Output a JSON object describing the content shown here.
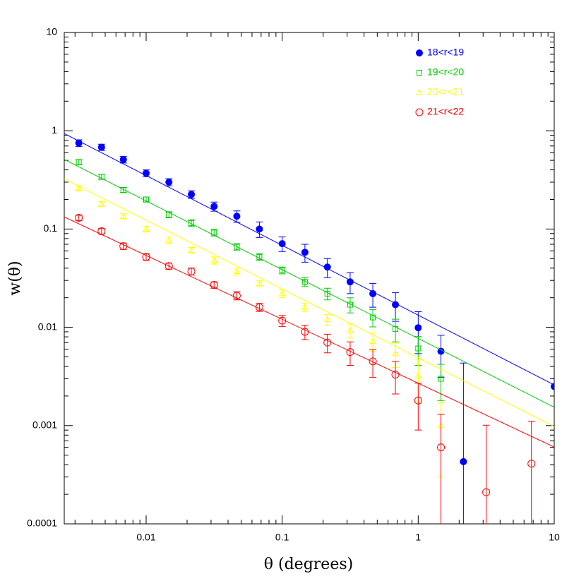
{
  "chart_data": {
    "type": "scatter",
    "x_label": "θ (degrees)",
    "y_label": "w(θ)",
    "log_x": true,
    "log_y": true,
    "legend_position": "upper right",
    "xlim": [
      0.0025,
      10
    ],
    "ylim": [
      0.0001,
      10
    ],
    "xticks": [
      0.01,
      0.1,
      1,
      10
    ],
    "yticks": [
      0.0001,
      0.001,
      0.01,
      0.1,
      1,
      10
    ],
    "x": [
      0.0032,
      0.0047,
      0.0068,
      0.01,
      0.0147,
      0.0215,
      0.0316,
      0.0464,
      0.068,
      0.1,
      0.147,
      0.215,
      0.316,
      0.464,
      0.68,
      1,
      1.47,
      2.15,
      3.16,
      4.64,
      6.8,
      10
    ],
    "series": [
      {
        "name": "18<r<19",
        "color": "#0000ff",
        "marker": "filled-circle",
        "values": [
          0.75,
          0.68,
          0.51,
          0.37,
          0.3,
          0.225,
          0.17,
          0.135,
          0.1,
          0.071,
          0.058,
          0.041,
          0.029,
          0.022,
          0.017,
          0.0099,
          0.0057,
          0.00043,
          null,
          null,
          null,
          0.0025
        ],
        "errors": [
          0.06,
          0.05,
          0.04,
          0.03,
          0.025,
          0.02,
          0.018,
          0.018,
          0.018,
          0.012,
          0.012,
          0.009,
          0.007,
          0.006,
          0.0055,
          0.0045,
          0.0026,
          0.0039,
          null,
          null,
          null,
          null
        ],
        "fit": {
          "amplitude": 0.0133,
          "slope": -0.71
        }
      },
      {
        "name": "19<r<20",
        "color": "#00cc00",
        "marker": "open-square",
        "values": [
          0.48,
          0.34,
          0.25,
          0.2,
          0.14,
          0.115,
          0.092,
          0.066,
          0.052,
          0.038,
          0.029,
          0.022,
          0.017,
          0.0126,
          0.0096,
          0.0061,
          0.003,
          null,
          null,
          null,
          null,
          null
        ],
        "errors": [
          0.03,
          0.02,
          0.015,
          0.012,
          0.01,
          0.009,
          0.007,
          0.005,
          0.004,
          0.003,
          0.003,
          0.003,
          0.003,
          0.0025,
          0.0025,
          0.002,
          0.0012,
          null,
          null,
          null,
          null,
          null
        ],
        "fit": {
          "amplitude": 0.0077,
          "slope": -0.7
        }
      },
      {
        "name": "20<r<21",
        "color": "#ffff00",
        "marker": "open-triangle",
        "values": [
          0.26,
          0.18,
          0.135,
          0.1,
          0.077,
          0.061,
          0.048,
          0.037,
          0.028,
          0.022,
          0.016,
          0.012,
          0.0093,
          0.0072,
          0.0054,
          0.0032,
          0.001,
          null,
          null,
          null,
          null,
          null
        ],
        "errors": [
          0.015,
          0.01,
          0.008,
          0.007,
          0.006,
          0.004,
          0.004,
          0.003,
          0.002,
          0.002,
          0.0015,
          0.0015,
          0.0015,
          0.0015,
          0.0015,
          0.0015,
          0.0007,
          null,
          null,
          null,
          null,
          null
        ],
        "fit": {
          "amplitude": 0.0049,
          "slope": -0.7
        }
      },
      {
        "name": "21<r<22",
        "color": "#ff0000",
        "marker": "open-circle",
        "values": [
          0.13,
          0.095,
          0.067,
          0.052,
          0.042,
          0.037,
          0.027,
          0.021,
          0.016,
          0.0117,
          0.009,
          0.007,
          0.0056,
          0.0045,
          0.0033,
          0.0018,
          0.0006,
          null,
          0.00021,
          null,
          0.00041,
          null
        ],
        "errors": [
          0.008,
          0.006,
          0.005,
          0.004,
          0.003,
          0.003,
          0.002,
          0.002,
          0.0015,
          0.0015,
          0.0015,
          0.0015,
          0.0015,
          0.0014,
          0.0012,
          0.0009,
          0.0007,
          null,
          0.0008,
          null,
          0.0007,
          null
        ],
        "fit": {
          "amplitude": 0.0027,
          "slope": -0.65
        }
      }
    ]
  }
}
